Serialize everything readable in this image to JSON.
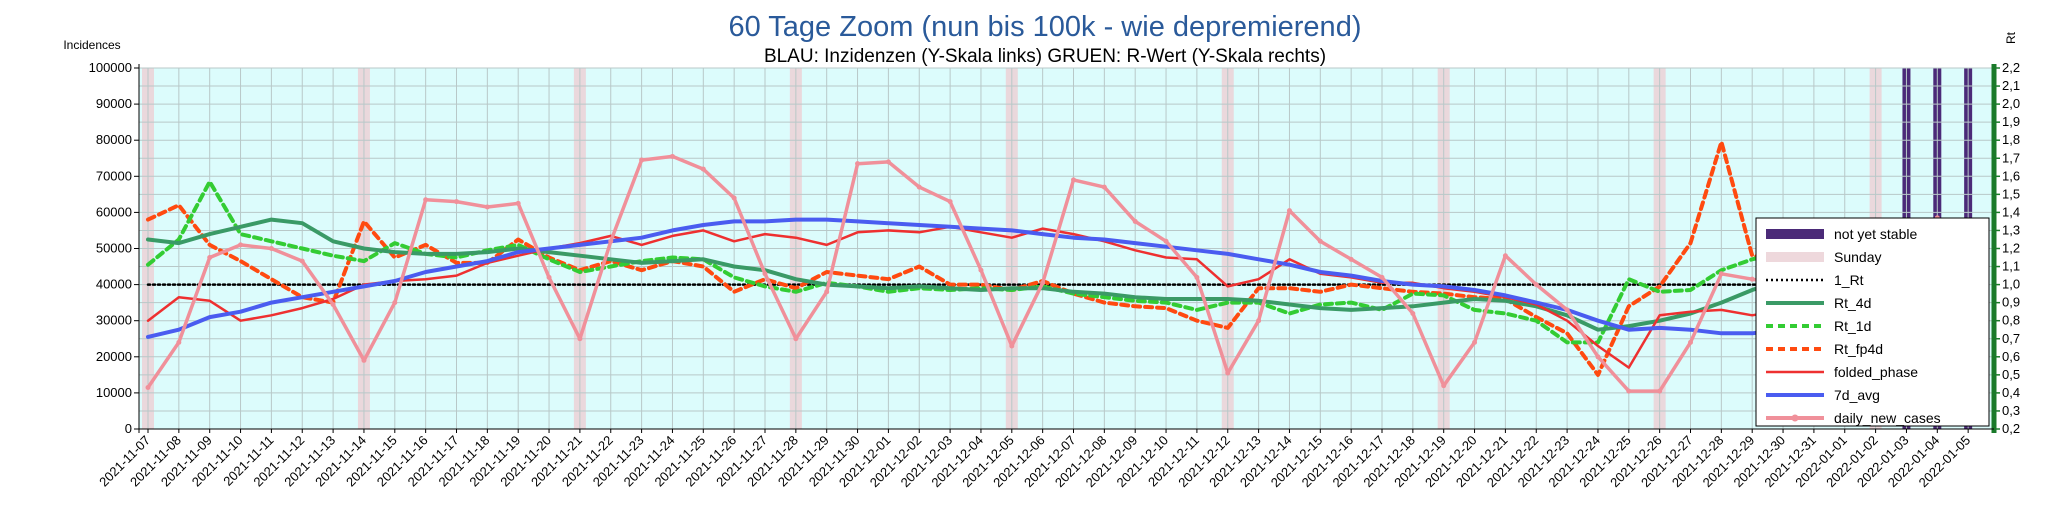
{
  "chart_data": {
    "type": "line",
    "title": "60 Tage Zoom  (nun bis 100k - wie depremierend)",
    "subtitle": "BLAU: Inzidenzen (Y-Skala links)     GRUEN: R-Wert (Y-Skala rechts)",
    "ylabel_left": "Incidences",
    "ylabel_right": "Rt",
    "ylim_left": [
      0,
      100000
    ],
    "ylim_right": [
      0.2,
      2.2
    ],
    "grid": true,
    "legend_position": "right",
    "y_ticks_left": [
      "0",
      "10000",
      "20000",
      "30000",
      "40000",
      "50000",
      "60000",
      "70000",
      "80000",
      "90000",
      "100000"
    ],
    "y_ticks_right": [
      "0,2",
      "0,3",
      "0,4",
      "0,5",
      "0,6",
      "0,7",
      "0,8",
      "0,9",
      "1,0",
      "1,1",
      "1,2",
      "1,3",
      "1,4",
      "1,5",
      "1,6",
      "1,7",
      "1,8",
      "1,9",
      "2,0",
      "2,1",
      "2,2"
    ],
    "x": [
      "2021-11-07",
      "2021-11-08",
      "2021-11-09",
      "2021-11-10",
      "2021-11-11",
      "2021-11-12",
      "2021-11-13",
      "2021-11-14",
      "2021-11-15",
      "2021-11-16",
      "2021-11-17",
      "2021-11-18",
      "2021-11-19",
      "2021-11-20",
      "2021-11-21",
      "2021-11-22",
      "2021-11-23",
      "2021-11-24",
      "2021-11-25",
      "2021-11-26",
      "2021-11-27",
      "2021-11-28",
      "2021-11-29",
      "2021-11-30",
      "2021-12-01",
      "2021-12-02",
      "2021-12-03",
      "2021-12-04",
      "2021-12-05",
      "2021-12-06",
      "2021-12-07",
      "2021-12-08",
      "2021-12-09",
      "2021-12-10",
      "2021-12-11",
      "2021-12-12",
      "2021-12-13",
      "2021-12-14",
      "2021-12-15",
      "2021-12-16",
      "2021-12-17",
      "2021-12-18",
      "2021-12-19",
      "2021-12-20",
      "2021-12-21",
      "2021-12-22",
      "2021-12-23",
      "2021-12-24",
      "2021-12-25",
      "2021-12-26",
      "2021-12-27",
      "2021-12-28",
      "2021-12-29",
      "2021-12-30",
      "2021-12-31",
      "2022-01-01",
      "2022-01-02",
      "2022-01-03",
      "2022-01-04",
      "2022-01-05"
    ],
    "sunday_dates": [
      "2021-11-07",
      "2021-11-14",
      "2021-11-21",
      "2021-11-28",
      "2021-12-05",
      "2021-12-12",
      "2021-12-19",
      "2021-12-26",
      "2022-01-02"
    ],
    "not_yet_stable_dates": [
      "2022-01-03",
      "2022-01-04",
      "2022-01-05"
    ],
    "series": [
      {
        "name": "not yet stable",
        "axis": "left",
        "color": "#4b2a78",
        "style": "band"
      },
      {
        "name": "Sunday",
        "axis": "left",
        "color": "#e8d2d6",
        "style": "band"
      },
      {
        "name": "1_Rt",
        "axis": "right",
        "color": "#000000",
        "style": "dotted",
        "values": [
          1,
          1,
          1,
          1,
          1,
          1,
          1,
          1,
          1,
          1,
          1,
          1,
          1,
          1,
          1,
          1,
          1,
          1,
          1,
          1,
          1,
          1,
          1,
          1,
          1,
          1,
          1,
          1,
          1,
          1,
          1,
          1,
          1,
          1,
          1,
          1,
          1,
          1,
          1,
          1,
          1,
          1,
          1,
          1,
          1,
          1,
          1,
          1,
          1,
          1,
          1,
          1,
          1,
          1,
          1,
          1,
          1,
          1,
          1,
          1
        ]
      },
      {
        "name": "Rt_4d",
        "axis": "right",
        "color": "#3a9a66",
        "style": "thick",
        "values": [
          1.25,
          1.23,
          1.28,
          1.32,
          1.36,
          1.34,
          1.24,
          1.2,
          1.18,
          1.17,
          1.17,
          1.18,
          1.2,
          1.18,
          1.16,
          1.14,
          1.12,
          1.13,
          1.14,
          1.1,
          1.08,
          1.03,
          1.0,
          0.99,
          0.98,
          0.99,
          0.98,
          0.97,
          0.98,
          0.98,
          0.96,
          0.95,
          0.93,
          0.92,
          0.92,
          0.92,
          0.91,
          0.89,
          0.87,
          0.86,
          0.87,
          0.88,
          0.9,
          0.92,
          0.91,
          0.88,
          0.83,
          0.75,
          0.77,
          0.8,
          0.84,
          0.9,
          0.97,
          1.03,
          1.07,
          1.1,
          1.11,
          1.17,
          1.17,
          1.11
        ]
      },
      {
        "name": "Rt_1d",
        "axis": "right",
        "color": "#33cc33",
        "style": "dashed",
        "values": [
          1.11,
          1.25,
          1.57,
          1.28,
          1.24,
          1.2,
          1.16,
          1.13,
          1.23,
          1.17,
          1.15,
          1.19,
          1.22,
          1.14,
          1.07,
          1.1,
          1.13,
          1.15,
          1.14,
          1.04,
          0.99,
          0.96,
          1.01,
          0.99,
          0.96,
          0.98,
          0.97,
          0.98,
          0.97,
          0.99,
          0.95,
          0.93,
          0.91,
          0.9,
          0.86,
          0.9,
          0.9,
          0.84,
          0.89,
          0.9,
          0.86,
          0.95,
          0.94,
          0.86,
          0.84,
          0.8,
          0.68,
          0.68,
          1.03,
          0.96,
          0.97,
          1.08,
          1.14,
          1.18,
          1.14,
          1.12,
          1.16,
          1.28,
          1.3,
          1.1
        ]
      },
      {
        "name": "Rt_fp4d",
        "axis": "right",
        "color": "#ff4a10",
        "style": "dashed",
        "values": [
          1.36,
          1.44,
          1.22,
          1.13,
          1.03,
          0.93,
          0.9,
          1.35,
          1.15,
          1.22,
          1.12,
          1.12,
          1.25,
          1.15,
          1.08,
          1.13,
          1.08,
          1.13,
          1.1,
          0.96,
          1.03,
          0.98,
          1.07,
          1.05,
          1.03,
          1.1,
          1.0,
          1.0,
          0.97,
          1.02,
          0.95,
          0.9,
          0.88,
          0.87,
          0.8,
          0.76,
          0.98,
          0.98,
          0.96,
          1.0,
          0.98,
          0.96,
          0.95,
          0.93,
          0.92,
          0.82,
          0.73,
          0.5,
          0.88,
          0.99,
          1.23,
          1.79,
          1.16,
          1.13,
          1.13,
          1.1,
          1.08,
          1.05,
          0.99,
          0.96
        ]
      },
      {
        "name": "folded_phase",
        "axis": "left",
        "color": "#ee3030",
        "style": "solid",
        "values": [
          30000,
          36500,
          35500,
          30000,
          31500,
          33500,
          36000,
          40000,
          41000,
          41500,
          42500,
          46000,
          48000,
          50000,
          51500,
          53500,
          51000,
          53500,
          55000,
          52000,
          54000,
          53000,
          51000,
          54500,
          55000,
          54500,
          56000,
          54500,
          53000,
          55500,
          54000,
          52000,
          49500,
          47500,
          47000,
          39500,
          41500,
          47000,
          43000,
          42000,
          40500,
          40500,
          39000,
          38000,
          36500,
          34500,
          30000,
          23000,
          17000,
          31500,
          32500,
          33000,
          31500,
          33000,
          35500,
          36500,
          35500,
          36500,
          36000,
          31500
        ]
      },
      {
        "name": "7d_avg",
        "axis": "left",
        "color": "#4a5cf0",
        "style": "thick",
        "values": [
          25500,
          27500,
          31000,
          32500,
          35000,
          36500,
          38000,
          39500,
          41000,
          43500,
          45000,
          46500,
          49000,
          50000,
          51000,
          52000,
          53000,
          55000,
          56500,
          57500,
          57500,
          58000,
          58000,
          57500,
          57000,
          56500,
          56000,
          55500,
          55000,
          54000,
          53000,
          52500,
          51500,
          50500,
          49500,
          48500,
          47000,
          45500,
          43500,
          42500,
          41000,
          40000,
          39500,
          38500,
          37000,
          35000,
          33000,
          30000,
          27500,
          28000,
          27500,
          26500,
          26500,
          27500,
          28500,
          29000,
          29500,
          30500,
          32500,
          35000
        ]
      },
      {
        "name": "daily_new_cases",
        "axis": "left",
        "color": "#f0909a",
        "style": "thick-marker",
        "values": [
          11500,
          24000,
          47500,
          51000,
          50000,
          46500,
          34500,
          19000,
          35000,
          63500,
          63000,
          61500,
          62500,
          42000,
          25000,
          52000,
          74500,
          75500,
          72000,
          64000,
          43000,
          25000,
          38000,
          73500,
          74000,
          67000,
          63000,
          44000,
          23000,
          40500,
          69000,
          67000,
          57500,
          52000,
          42000,
          15500,
          30000,
          60500,
          52000,
          47000,
          42000,
          32000,
          12000,
          24000,
          48000,
          40000,
          33000,
          20000,
          10500,
          10500,
          24000,
          43000,
          41500,
          40000,
          29000,
          14000,
          14000,
          33000,
          58500,
          46000
        ]
      }
    ]
  }
}
